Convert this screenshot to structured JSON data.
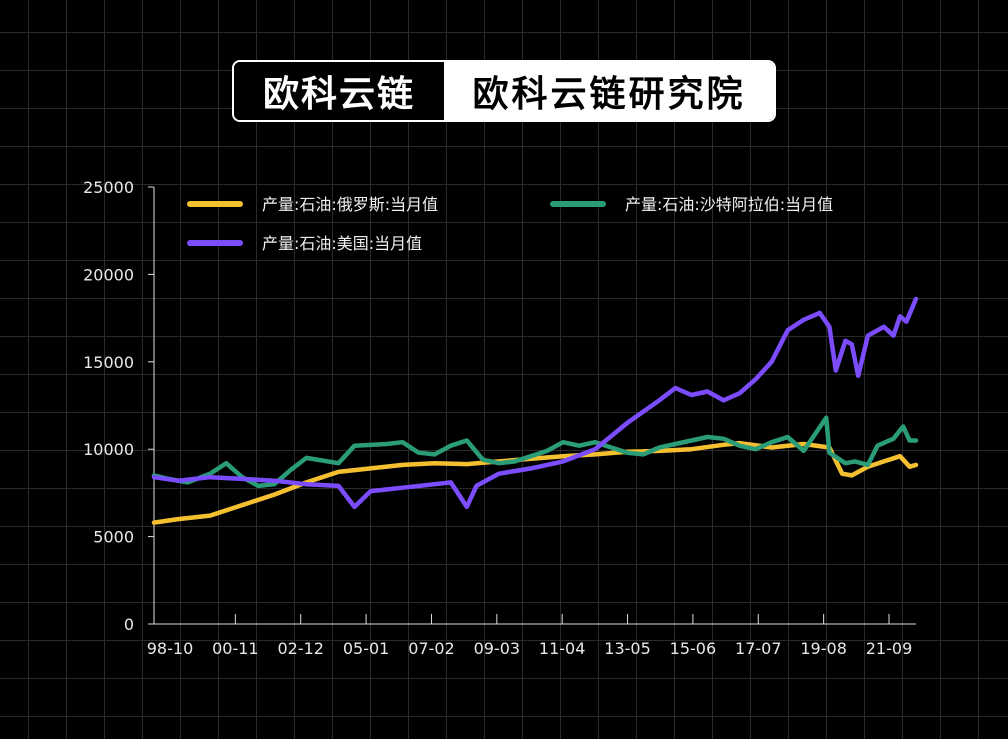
{
  "banner": {
    "left_text": "欧科云链",
    "right_text": "欧科云链研究院"
  },
  "chart_data": {
    "type": "line",
    "x_ticks": [
      "98-10",
      "00-11",
      "02-12",
      "05-01",
      "07-02",
      "09-03",
      "11-04",
      "13-05",
      "15-06",
      "17-07",
      "19-08",
      "21-09"
    ],
    "y_ticks": [
      "0",
      "5000",
      "10000",
      "15000",
      "20000",
      "25000"
    ],
    "ylim": [
      0,
      25000
    ],
    "xlim": [
      1998.75,
      2022.5
    ],
    "grid": true,
    "legend_position": "top",
    "series": [
      {
        "name": "产量:石油:俄罗斯:当月值",
        "color": "#f5c030",
        "points": [
          [
            1998.75,
            5800
          ],
          [
            1999.5,
            6000
          ],
          [
            2000.5,
            6200
          ],
          [
            2001.5,
            6800
          ],
          [
            2002.5,
            7400
          ],
          [
            2003.5,
            8100
          ],
          [
            2004.5,
            8700
          ],
          [
            2005.5,
            8900
          ],
          [
            2006.5,
            9100
          ],
          [
            2007.5,
            9200
          ],
          [
            2008.5,
            9150
          ],
          [
            2009.5,
            9300
          ],
          [
            2010.5,
            9450
          ],
          [
            2011.5,
            9600
          ],
          [
            2012.5,
            9700
          ],
          [
            2013.5,
            9850
          ],
          [
            2014.5,
            9900
          ],
          [
            2015.5,
            10000
          ],
          [
            2016.5,
            10250
          ],
          [
            2017.0,
            10350
          ],
          [
            2018.0,
            10100
          ],
          [
            2019.0,
            10300
          ],
          [
            2019.8,
            10100
          ],
          [
            2020.2,
            8600
          ],
          [
            2020.5,
            8500
          ],
          [
            2021.0,
            9000
          ],
          [
            2021.5,
            9300
          ],
          [
            2022.0,
            9600
          ],
          [
            2022.3,
            9000
          ],
          [
            2022.5,
            9100
          ]
        ]
      },
      {
        "name": "产量:石油:沙特阿拉伯:当月值",
        "color": "#2a9d78",
        "points": [
          [
            1998.75,
            8500
          ],
          [
            1999.2,
            8300
          ],
          [
            1999.8,
            8100
          ],
          [
            2000.5,
            8600
          ],
          [
            2001.0,
            9200
          ],
          [
            2001.5,
            8400
          ],
          [
            2002.0,
            7900
          ],
          [
            2002.5,
            8000
          ],
          [
            2003.0,
            8800
          ],
          [
            2003.5,
            9500
          ],
          [
            2004.5,
            9200
          ],
          [
            2005.0,
            10200
          ],
          [
            2006.0,
            10300
          ],
          [
            2006.5,
            10400
          ],
          [
            2007.0,
            9800
          ],
          [
            2007.5,
            9700
          ],
          [
            2008.0,
            10200
          ],
          [
            2008.5,
            10500
          ],
          [
            2009.0,
            9400
          ],
          [
            2009.5,
            9200
          ],
          [
            2010.0,
            9300
          ],
          [
            2010.5,
            9600
          ],
          [
            2011.0,
            9900
          ],
          [
            2011.5,
            10400
          ],
          [
            2012.0,
            10200
          ],
          [
            2012.5,
            10400
          ],
          [
            2013.0,
            10100
          ],
          [
            2013.5,
            9800
          ],
          [
            2014.0,
            9700
          ],
          [
            2014.5,
            10100
          ],
          [
            2015.0,
            10300
          ],
          [
            2015.5,
            10500
          ],
          [
            2016.0,
            10700
          ],
          [
            2016.5,
            10600
          ],
          [
            2017.0,
            10200
          ],
          [
            2017.5,
            10000
          ],
          [
            2018.0,
            10400
          ],
          [
            2018.5,
            10700
          ],
          [
            2019.0,
            9900
          ],
          [
            2019.7,
            11800
          ],
          [
            2019.8,
            9800
          ],
          [
            2020.3,
            9200
          ],
          [
            2020.6,
            9300
          ],
          [
            2021.0,
            9100
          ],
          [
            2021.3,
            10200
          ],
          [
            2021.8,
            10600
          ],
          [
            2022.1,
            11300
          ],
          [
            2022.3,
            10500
          ],
          [
            2022.5,
            10500
          ]
        ]
      },
      {
        "name": "产量:石油:美国:当月值",
        "color": "#7c4dff",
        "points": [
          [
            1998.75,
            8400
          ],
          [
            1999.5,
            8200
          ],
          [
            2000.5,
            8400
          ],
          [
            2001.5,
            8300
          ],
          [
            2002.5,
            8200
          ],
          [
            2003.5,
            8000
          ],
          [
            2004.5,
            7900
          ],
          [
            2005.0,
            6700
          ],
          [
            2005.5,
            7600
          ],
          [
            2006.5,
            7800
          ],
          [
            2007.5,
            8000
          ],
          [
            2008.0,
            8100
          ],
          [
            2008.5,
            6700
          ],
          [
            2008.8,
            7900
          ],
          [
            2009.5,
            8600
          ],
          [
            2010.5,
            8900
          ],
          [
            2011.5,
            9300
          ],
          [
            2012.5,
            10000
          ],
          [
            2013.5,
            11500
          ],
          [
            2014.5,
            12800
          ],
          [
            2015.0,
            13500
          ],
          [
            2015.5,
            13100
          ],
          [
            2016.0,
            13300
          ],
          [
            2016.5,
            12800
          ],
          [
            2017.0,
            13200
          ],
          [
            2017.5,
            14000
          ],
          [
            2018.0,
            15000
          ],
          [
            2018.5,
            16800
          ],
          [
            2019.0,
            17400
          ],
          [
            2019.5,
            17800
          ],
          [
            2019.8,
            17000
          ],
          [
            2020.0,
            14500
          ],
          [
            2020.3,
            16200
          ],
          [
            2020.5,
            16000
          ],
          [
            2020.7,
            14200
          ],
          [
            2021.0,
            16500
          ],
          [
            2021.5,
            17000
          ],
          [
            2021.8,
            16500
          ],
          [
            2022.0,
            17600
          ],
          [
            2022.2,
            17300
          ],
          [
            2022.5,
            18600
          ]
        ]
      }
    ]
  }
}
